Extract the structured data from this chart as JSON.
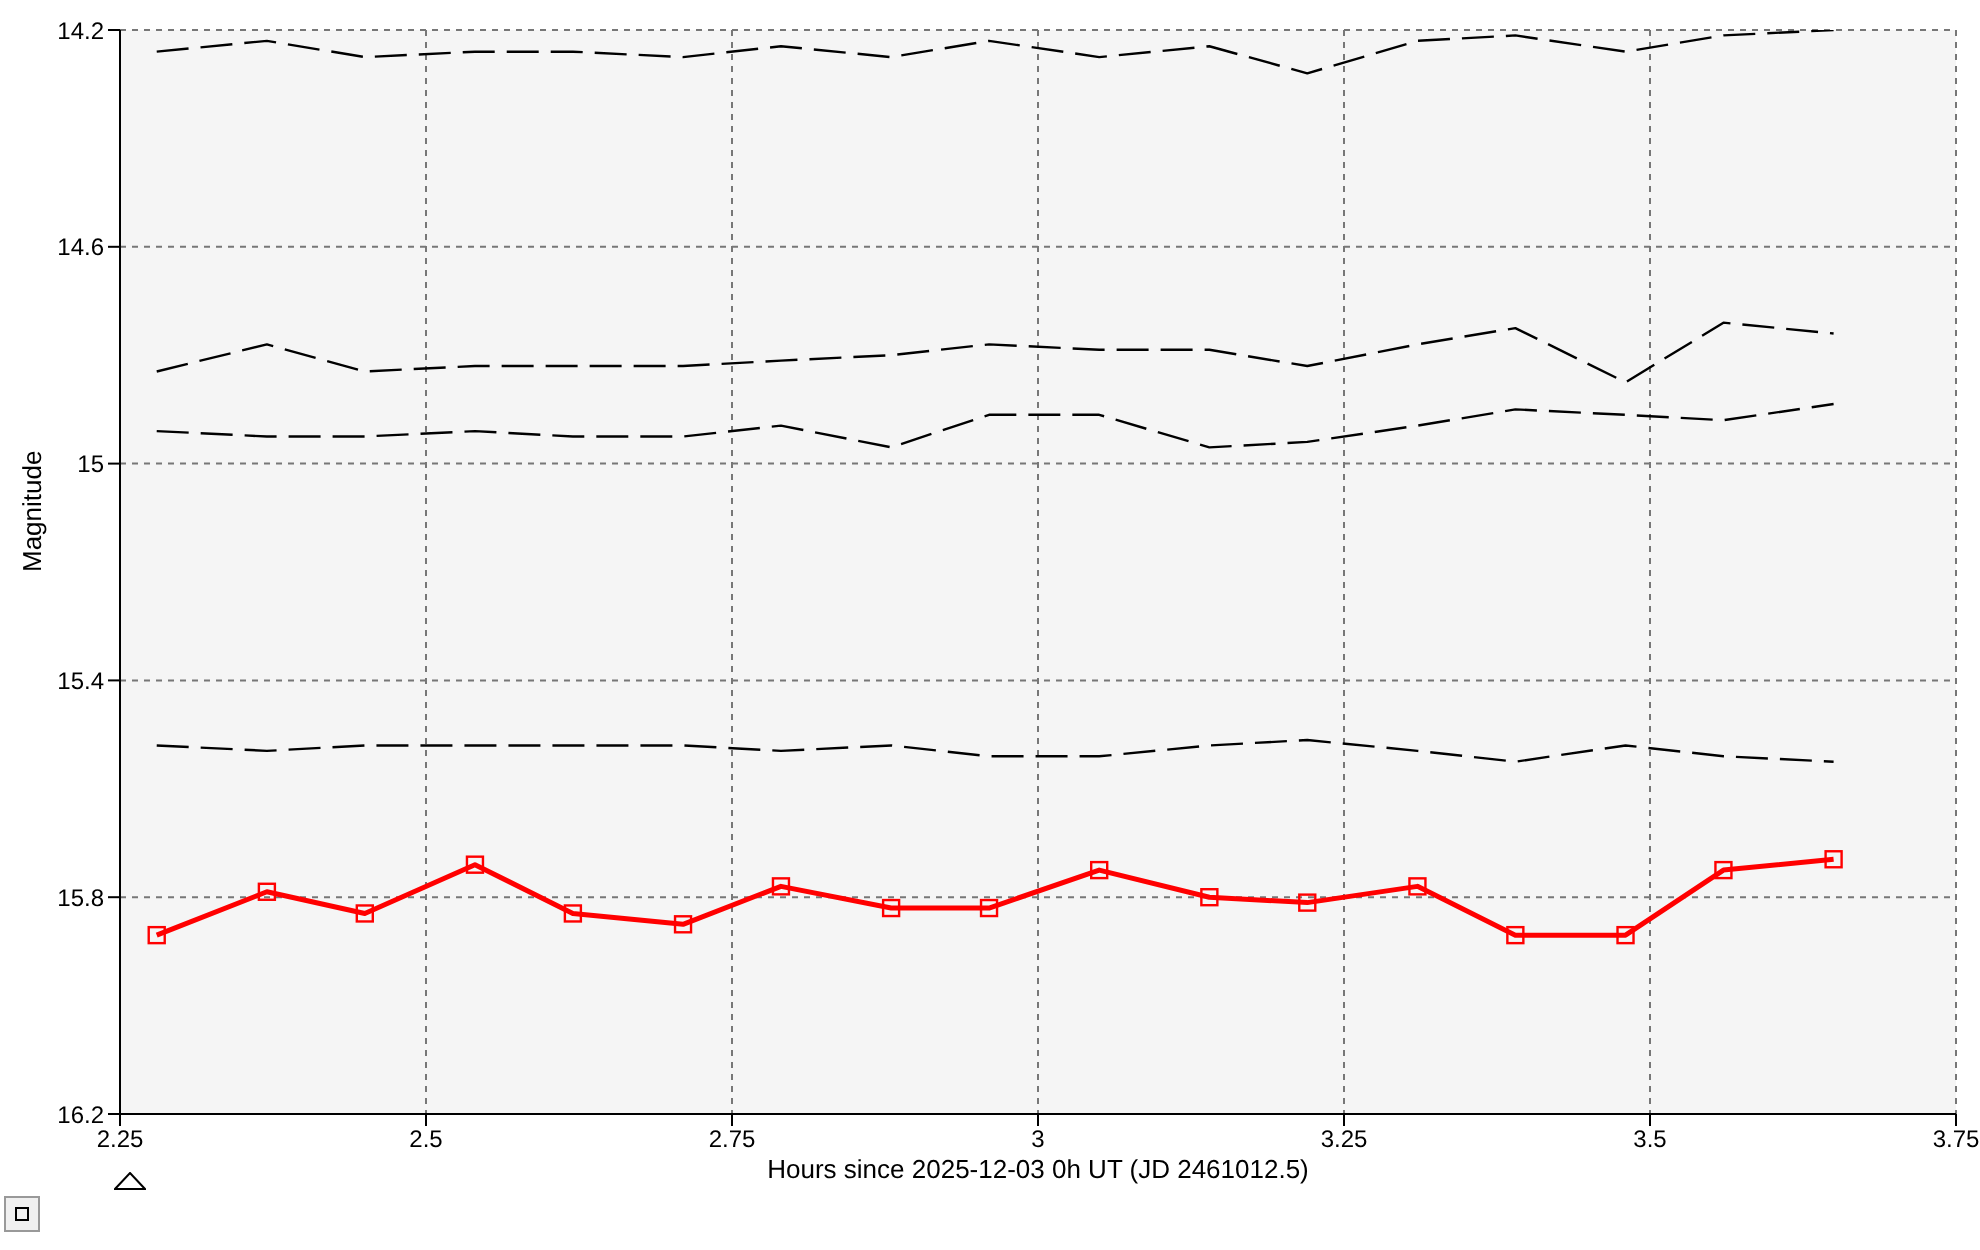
{
  "chart_data": {
    "type": "line",
    "xlabel": "Hours since 2025-12-03 0h UT (JD 2461012.5)",
    "ylabel": "Magnitude",
    "x": [
      2.28,
      2.37,
      2.45,
      2.54,
      2.62,
      2.71,
      2.79,
      2.88,
      2.96,
      3.05,
      3.14,
      3.22,
      3.31,
      3.39,
      3.48,
      3.56,
      3.65
    ],
    "series": [
      {
        "color": "#000000",
        "line_style": "dashed",
        "marker": "none",
        "values": [
          14.24,
          14.22,
          14.25,
          14.24,
          14.24,
          14.25,
          14.23,
          14.25,
          14.22,
          14.25,
          14.23,
          14.28,
          14.22,
          14.21,
          14.24,
          14.21,
          14.2
        ]
      },
      {
        "color": "#000000",
        "line_style": "dashed",
        "marker": "none",
        "values": [
          14.83,
          14.78,
          14.83,
          14.82,
          14.82,
          14.82,
          14.81,
          14.8,
          14.78,
          14.79,
          14.79,
          14.82,
          14.78,
          14.75,
          14.85,
          14.74,
          14.76
        ]
      },
      {
        "color": "#000000",
        "line_style": "dashed",
        "marker": "none",
        "values": [
          14.94,
          14.95,
          14.95,
          14.94,
          14.95,
          14.95,
          14.93,
          14.97,
          14.91,
          14.91,
          14.97,
          14.96,
          14.93,
          14.9,
          14.91,
          14.92,
          14.89
        ]
      },
      {
        "color": "#000000",
        "line_style": "dashed",
        "marker": "none",
        "values": [
          15.52,
          15.53,
          15.52,
          15.52,
          15.52,
          15.52,
          15.53,
          15.52,
          15.54,
          15.54,
          15.52,
          15.51,
          15.53,
          15.55,
          15.52,
          15.54,
          15.55
        ]
      },
      {
        "color": "#ff0000",
        "line_style": "solid",
        "marker": "square",
        "values": [
          15.87,
          15.79,
          15.83,
          15.74,
          15.83,
          15.85,
          15.78,
          15.82,
          15.82,
          15.75,
          15.8,
          15.81,
          15.78,
          15.87,
          15.87,
          15.75,
          15.73
        ]
      }
    ],
    "xlim": [
      2.25,
      3.75
    ],
    "xticks": [
      2.25,
      2.5,
      2.75,
      3,
      3.25,
      3.5,
      3.75
    ],
    "ylim": [
      16.2,
      14.2
    ],
    "yticks": [
      14.2,
      14.6,
      15,
      15.4,
      15.8,
      16.2
    ],
    "grid": true,
    "legend": false
  }
}
